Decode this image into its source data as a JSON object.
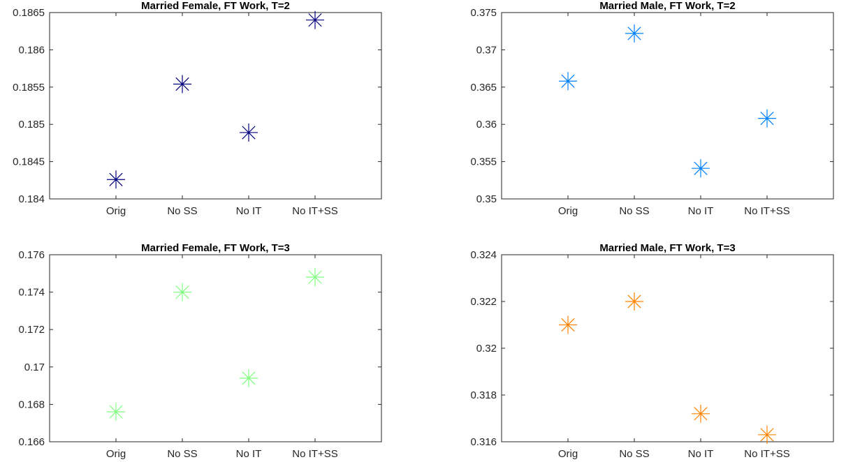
{
  "chart_data": [
    {
      "type": "scatter",
      "title": "Married Female, FT Work, T=2",
      "categories": [
        "Orig",
        "No SS",
        "No IT",
        "No IT+SS"
      ],
      "values": [
        0.18426,
        0.18554,
        0.18489,
        0.1864
      ],
      "ylim": [
        0.184,
        0.1865
      ],
      "yticks": [
        "0.184",
        "0.1845",
        "0.185",
        "0.1855",
        "0.186",
        "0.1865"
      ],
      "marker": "asterisk",
      "color": "#00007f",
      "grid": false
    },
    {
      "type": "scatter",
      "title": "Married Male, FT Work, T=2",
      "categories": [
        "Orig",
        "No SS",
        "No IT",
        "No IT+SS"
      ],
      "values": [
        0.3658,
        0.3722,
        0.3541,
        0.3608
      ],
      "ylim": [
        0.35,
        0.375
      ],
      "yticks": [
        "0.35",
        "0.355",
        "0.36",
        "0.365",
        "0.37",
        "0.375"
      ],
      "marker": "asterisk",
      "color": "#0080ff",
      "grid": false
    },
    {
      "type": "scatter",
      "title": "Married Female, FT Work, T=3",
      "categories": [
        "Orig",
        "No SS",
        "No IT",
        "No IT+SS"
      ],
      "values": [
        0.1676,
        0.174,
        0.1694,
        0.1748
      ],
      "ylim": [
        0.166,
        0.176
      ],
      "yticks": [
        "0.166",
        "0.168",
        "0.17",
        "0.172",
        "0.174",
        "0.176"
      ],
      "marker": "asterisk",
      "color": "#80ff80",
      "grid": false
    },
    {
      "type": "scatter",
      "title": "Married Male, FT Work, T=3",
      "categories": [
        "Orig",
        "No SS",
        "No IT",
        "No IT+SS"
      ],
      "values": [
        0.321,
        0.322,
        0.3172,
        0.3163
      ],
      "ylim": [
        0.316,
        0.324
      ],
      "yticks": [
        "0.316",
        "0.318",
        "0.32",
        "0.322",
        "0.324"
      ],
      "marker": "asterisk",
      "color": "#ff8000",
      "grid": false
    }
  ]
}
